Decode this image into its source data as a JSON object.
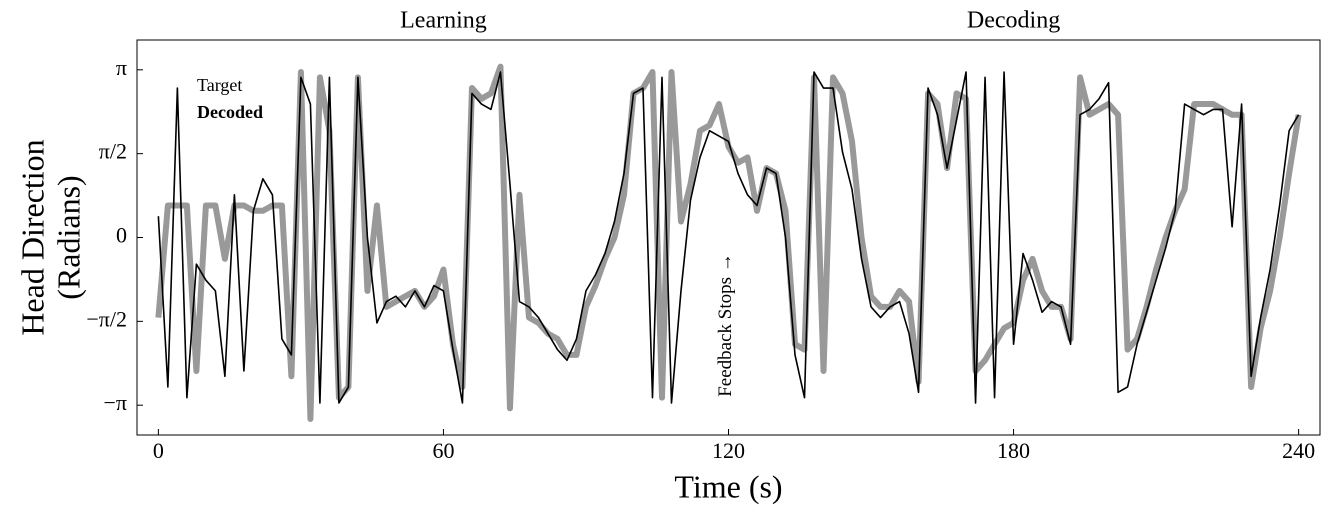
{
  "chart_data": {
    "type": "line",
    "ylabel": [
      "Head Direction",
      "(Radians)"
    ],
    "xlabel": "Time (s)",
    "annotations": [
      "Learning",
      "Decoding",
      "Feedback Stops →"
    ],
    "legend": "upper left",
    "xlim": [
      -4.5,
      244.5
    ],
    "ylim": [
      -3.7,
      3.7
    ],
    "xticks": [
      0,
      60,
      120,
      180,
      240
    ],
    "yticks": [
      {
        "value": -3.1416,
        "label": "−π"
      },
      {
        "value": -1.5708,
        "label": "−π/2"
      },
      0,
      {
        "value": 1.5708,
        "label": "π/2"
      },
      {
        "value": 3.1416,
        "label": "π"
      }
    ],
    "x": [
      0,
      2,
      4,
      6,
      8,
      10,
      12,
      14,
      16,
      18,
      20,
      22,
      24,
      26,
      28,
      30,
      32,
      34,
      36,
      38,
      40,
      42,
      44,
      46,
      48,
      50,
      52,
      54,
      56,
      58,
      60,
      62,
      64,
      66,
      68,
      70,
      72,
      74,
      76,
      78,
      80,
      82,
      84,
      86,
      88,
      90,
      92,
      94,
      96,
      98,
      100,
      102,
      104,
      106,
      108,
      110,
      112,
      114,
      116,
      118,
      120,
      122,
      124,
      126,
      128,
      130,
      132,
      134,
      136,
      138,
      140,
      142,
      144,
      146,
      148,
      150,
      152,
      154,
      156,
      158,
      160,
      162,
      164,
      166,
      168,
      170,
      172,
      174,
      176,
      178,
      180,
      182,
      184,
      186,
      188,
      190,
      192,
      194,
      196,
      198,
      200,
      202,
      204,
      206,
      208,
      210,
      212,
      214,
      216,
      218,
      220,
      222,
      224,
      226,
      228,
      230,
      232,
      234,
      236,
      238,
      240
    ],
    "series": [
      {
        "name": "Target",
        "color": "#000000",
        "values": [
          0.4,
          -2.8,
          2.8,
          -3.0,
          -0.5,
          -0.8,
          -1.0,
          -2.6,
          0.8,
          -2.5,
          0.5,
          1.1,
          0.8,
          -1.9,
          -2.2,
          3.0,
          2.5,
          -3.1,
          3.0,
          -3.1,
          -2.8,
          3.0,
          0.0,
          -1.6,
          -1.2,
          -1.1,
          -1.3,
          -1.0,
          -1.3,
          -0.9,
          -1.0,
          -2.1,
          -3.1,
          2.7,
          2.5,
          2.4,
          3.1,
          1.0,
          -1.2,
          -1.3,
          -1.5,
          -1.8,
          -2.1,
          -2.3,
          -1.9,
          -1.0,
          -0.7,
          -0.3,
          0.3,
          1.2,
          2.7,
          2.8,
          -3.0,
          3.0,
          -3.1,
          -1.0,
          0.7,
          1.5,
          2.0,
          1.9,
          1.8,
          1.2,
          0.8,
          0.6,
          1.3,
          1.2,
          0.0,
          -2.2,
          -3.0,
          3.1,
          2.8,
          2.8,
          1.6,
          0.9,
          -0.4,
          -1.3,
          -1.5,
          -1.3,
          -1.2,
          -1.8,
          -2.9,
          2.8,
          2.3,
          1.3,
          2.2,
          3.1,
          -3.1,
          3.0,
          -3.0,
          3.1,
          -2.0,
          -0.3,
          -0.8,
          -1.4,
          -1.2,
          -1.3,
          -2.0,
          2.3,
          2.4,
          2.6,
          2.9,
          -2.9,
          -2.8,
          -2.0,
          -1.4,
          -0.8,
          -0.2,
          0.5,
          2.5,
          2.4,
          2.3,
          2.4,
          2.4,
          0.2,
          2.5,
          -2.6,
          -1.5,
          -0.6,
          0.6,
          2.0,
          2.3
        ]
      },
      {
        "name": "Decoded",
        "color": "#999999",
        "values": [
          -1.5,
          0.6,
          0.6,
          0.6,
          -2.5,
          0.6,
          0.6,
          -0.4,
          0.6,
          0.6,
          0.5,
          0.5,
          0.6,
          0.6,
          -2.6,
          3.1,
          -3.4,
          3.0,
          2.0,
          -3.0,
          -2.8,
          3.0,
          -1.0,
          0.6,
          -1.3,
          -1.2,
          -1.1,
          -1.0,
          -1.3,
          -1.1,
          -0.6,
          -2.0,
          -2.8,
          2.8,
          2.6,
          2.7,
          3.2,
          -3.2,
          0.8,
          -1.5,
          -1.6,
          -1.8,
          -1.9,
          -2.2,
          -2.2,
          -1.3,
          -0.9,
          -0.4,
          0.0,
          0.8,
          2.7,
          2.8,
          3.1,
          -3.0,
          3.1,
          0.3,
          1.0,
          2.0,
          2.1,
          2.5,
          1.7,
          1.4,
          1.5,
          0.5,
          1.3,
          1.2,
          0.5,
          -2.0,
          -2.1,
          3.0,
          -2.5,
          3.0,
          2.7,
          1.8,
          0.0,
          -1.1,
          -1.3,
          -1.3,
          -1.0,
          -1.2,
          -2.7,
          2.7,
          2.5,
          1.3,
          2.7,
          2.6,
          -2.5,
          -2.3,
          -2.0,
          -1.7,
          -1.6,
          -0.8,
          -0.4,
          -1.0,
          -1.3,
          -1.3,
          -1.9,
          3.0,
          2.3,
          2.4,
          2.5,
          2.3,
          -2.1,
          -1.9,
          -1.3,
          -0.6,
          0.0,
          0.5,
          0.9,
          2.5,
          2.5,
          2.5,
          2.4,
          2.3,
          2.3,
          -2.8,
          -1.7,
          -1.0,
          0.0,
          1.2,
          2.3
        ]
      }
    ]
  }
}
